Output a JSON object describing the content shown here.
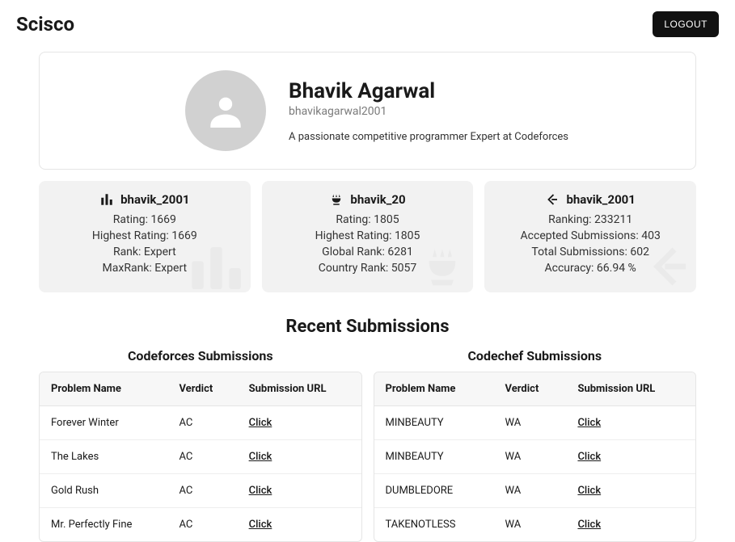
{
  "header": {
    "brand": "Scisco",
    "logout": "LOGOUT"
  },
  "profile": {
    "name": "Bhavik Agarwal",
    "handle": "bhavikagarwal2001",
    "bio": "A passionate competitive programmer Expert at Codeforces"
  },
  "platforms": {
    "codeforces": {
      "handle": "bhavik_2001",
      "lines": [
        "Rating: 1669",
        "Highest Rating: 1669",
        "Rank: Expert",
        "MaxRank: Expert"
      ]
    },
    "codechef": {
      "handle": "bhavik_20",
      "lines": [
        "Rating: 1805",
        "Highest Rating: 1805",
        "Global Rank: 6281",
        "Country Rank: 5057"
      ]
    },
    "leetcode": {
      "handle": "bhavik_2001",
      "lines": [
        "Ranking: 233211",
        "Accepted Submissions: 403",
        "Total Submissions: 602",
        "Accuracy: 66.94 %"
      ]
    }
  },
  "recent": {
    "title": "Recent Submissions",
    "columns": [
      "Problem Name",
      "Verdict",
      "Submission URL"
    ],
    "click_label": "Click",
    "codeforces": {
      "title": "Codeforces Submissions",
      "rows": [
        {
          "problem": "Forever Winter",
          "verdict": "AC"
        },
        {
          "problem": "The Lakes",
          "verdict": "AC"
        },
        {
          "problem": "Gold Rush",
          "verdict": "AC"
        },
        {
          "problem": "Mr. Perfectly Fine",
          "verdict": "AC"
        }
      ]
    },
    "codechef": {
      "title": "Codechef Submissions",
      "rows": [
        {
          "problem": "MINBEAUTY",
          "verdict": "WA"
        },
        {
          "problem": "MINBEAUTY",
          "verdict": "WA"
        },
        {
          "problem": "DUMBLEDORE",
          "verdict": "WA"
        },
        {
          "problem": "TAKENOTLESS",
          "verdict": "WA"
        }
      ]
    }
  },
  "colors": {
    "card_bg": "#f2f2f2",
    "border": "#e5e5e5",
    "muted": "#7a7a7a",
    "text": "#1a1a1a",
    "ghost_icon": "#dddddd"
  }
}
